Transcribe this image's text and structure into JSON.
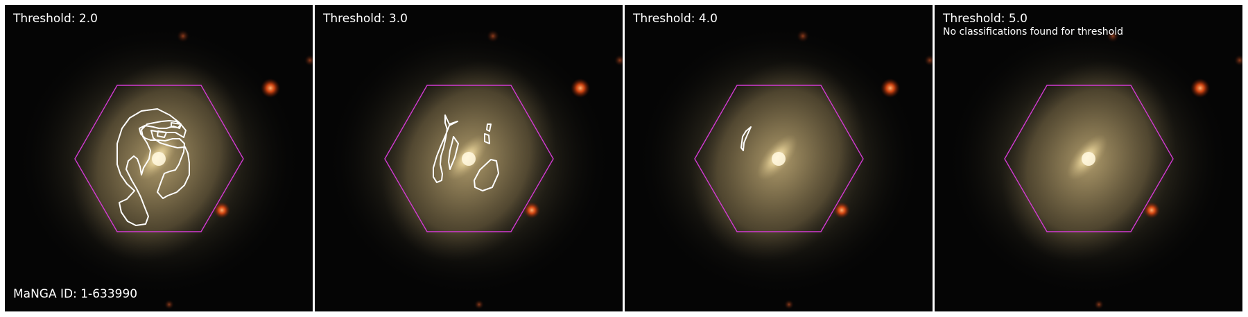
{
  "colors": {
    "background": "#ffffff",
    "sky": "#050505",
    "galaxy_core": "#fff3cf",
    "galaxy_disk": "#a89566",
    "hexagon": "#d23ad2",
    "contour": "#ffffff",
    "star": "#ff5a1e"
  },
  "panels": [
    {
      "threshold_label": "Threshold: 2.0",
      "note": "",
      "footer": "MaNGA ID: 1-633990"
    },
    {
      "threshold_label": "Threshold: 3.0",
      "note": "",
      "footer": ""
    },
    {
      "threshold_label": "Threshold: 4.0",
      "note": "",
      "footer": ""
    },
    {
      "threshold_label": "Threshold: 5.0",
      "note": "No classifications found for threshold",
      "footer": ""
    }
  ]
}
